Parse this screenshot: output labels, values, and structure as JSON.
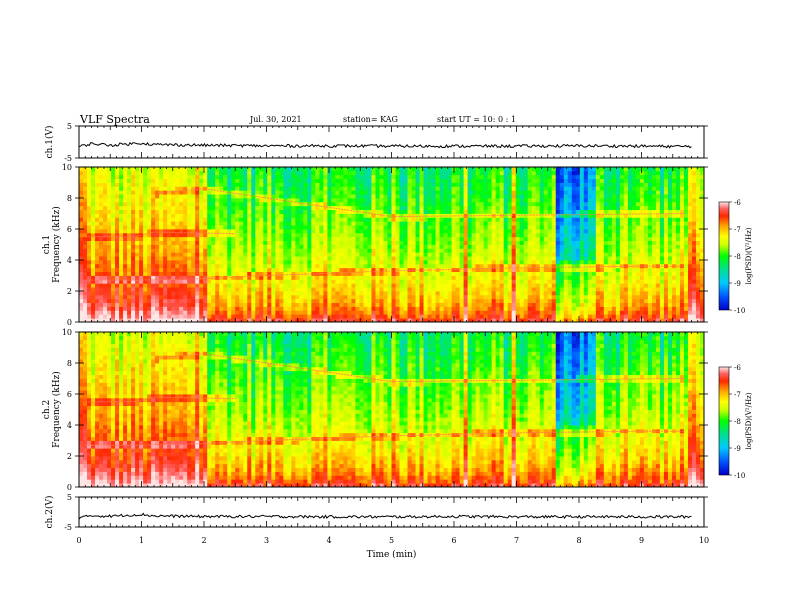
{
  "header": {
    "title": "VLF Spectra",
    "date": "Jul. 30, 2021",
    "station": "station= KAG",
    "start": "start  UT =   10: 0  : 1"
  },
  "colors": {
    "trace": "#000000",
    "colormap": [
      "#0000c8",
      "#0050ff",
      "#00c8ff",
      "#00e08c",
      "#00ff00",
      "#c8ff00",
      "#ffff00",
      "#ffa000",
      "#ff2800",
      "#ff6464",
      "#ffe6e6"
    ]
  },
  "chart_data": [
    {
      "type": "line",
      "panel": "waveform-ch1",
      "ylabel": "ch.1(V)",
      "ylim": [
        -5,
        5
      ],
      "yticks": [
        "5",
        "-5"
      ],
      "xlim": [
        0,
        10
      ],
      "series": [
        {
          "x": [
            0,
            0.2,
            0.5,
            1.0,
            1.2,
            2.0,
            3.0,
            4.0,
            5.0,
            6.0,
            7.0,
            8.0,
            9.0,
            9.8
          ],
          "y": [
            -1.5,
            -0.5,
            -1.0,
            -0.3,
            -0.8,
            -1.0,
            -1.2,
            -1.2,
            -1.3,
            -1.3,
            -1.3,
            -1.2,
            -1.3,
            -1.4
          ]
        }
      ]
    },
    {
      "type": "heatmap",
      "panel": "spectrogram-ch1",
      "ylabel": "ch.1\nFrequency (kHz)",
      "ylim": [
        0,
        10
      ],
      "yticks": [
        "0",
        "2",
        "4",
        "6",
        "8",
        "10"
      ],
      "xlim": [
        0,
        10
      ],
      "colorbar": {
        "label": "log(PSD)(V²/Hz)",
        "range": [
          -10,
          -6
        ],
        "ticks": [
          "-6",
          "-7",
          "-8",
          "-9",
          "-10"
        ]
      },
      "lines_khz": [
        {
          "x": [
            0.1,
            1.0,
            2.0,
            3.0,
            5.0,
            7.0,
            9.0,
            9.7
          ],
          "y": [
            2.7,
            2.7,
            2.8,
            3.0,
            3.3,
            3.5,
            3.6,
            3.6
          ]
        },
        {
          "x": [
            0.1,
            0.9,
            1.2,
            2.5
          ],
          "y": [
            5.5,
            5.5,
            5.8,
            5.7
          ]
        },
        {
          "x": [
            1.2,
            2.0,
            5.0,
            9.7
          ],
          "y": [
            8.3,
            8.6,
            6.8,
            7.0
          ]
        }
      ]
    },
    {
      "type": "heatmap",
      "panel": "spectrogram-ch2",
      "ylabel": "ch.2\nFrequency (kHz)",
      "ylim": [
        0,
        10
      ],
      "yticks": [
        "0",
        "2",
        "4",
        "6",
        "8",
        "10"
      ],
      "xlim": [
        0,
        10
      ],
      "colorbar": {
        "label": "log(PSD)(V²/Hz)",
        "range": [
          -10,
          -6
        ],
        "ticks": [
          "-6",
          "-7",
          "-8",
          "-9",
          "-10"
        ]
      },
      "lines_khz": [
        {
          "x": [
            0.1,
            1.0,
            2.0,
            3.0,
            5.0,
            7.0,
            9.0,
            9.7
          ],
          "y": [
            2.7,
            2.7,
            2.8,
            3.0,
            3.3,
            3.5,
            3.6,
            3.6
          ]
        },
        {
          "x": [
            0.1,
            0.9,
            1.2,
            2.5
          ],
          "y": [
            5.5,
            5.5,
            5.8,
            5.7
          ]
        },
        {
          "x": [
            1.2,
            2.0,
            5.0,
            9.7
          ],
          "y": [
            8.3,
            8.6,
            6.8,
            7.0
          ]
        }
      ]
    },
    {
      "type": "line",
      "panel": "waveform-ch2",
      "ylabel": "ch.2(V)",
      "ylim": [
        -5,
        5
      ],
      "yticks": [
        "5",
        "-5"
      ],
      "xlim": [
        0,
        10
      ],
      "xlabel": "Time (min)",
      "xticks": [
        "0",
        "1",
        "2",
        "3",
        "4",
        "5",
        "6",
        "7",
        "8",
        "9",
        "10"
      ],
      "series": [
        {
          "x": [
            0,
            0.2,
            0.5,
            1.0,
            1.2,
            2.0,
            3.0,
            4.0,
            5.0,
            6.0,
            7.0,
            8.0,
            9.0,
            9.8
          ],
          "y": [
            -2.0,
            -1.2,
            -1.4,
            -0.8,
            -1.3,
            -1.5,
            -1.5,
            -1.6,
            -1.6,
            -1.5,
            -1.6,
            -1.6,
            -1.6,
            -1.6
          ]
        }
      ]
    }
  ]
}
